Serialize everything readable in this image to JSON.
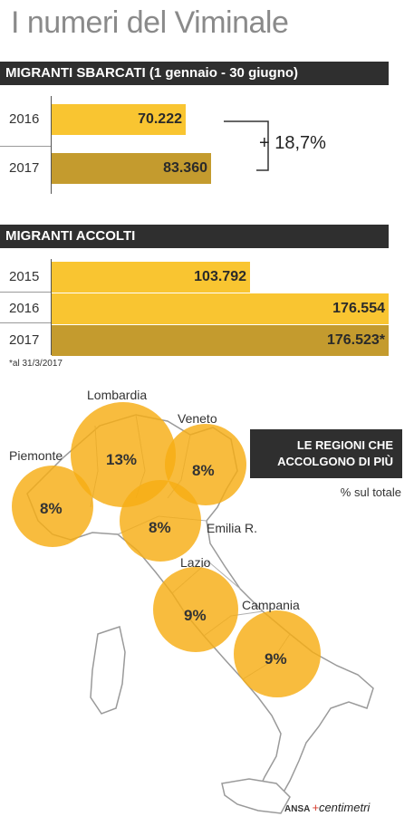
{
  "title": "I numeri del Viminale",
  "section1": {
    "header": "MIGRANTI SBARCATI (1 gennaio - 30 giugno)",
    "delta": "+ 18,7%"
  },
  "section2": {
    "header": "MIGRANTI ACCOLTI",
    "note": "*al 31/3/2017"
  },
  "map": {
    "legend_title_line1": "LE REGIONI CHE",
    "legend_title_line2": "ACCOLGONO DI PIÙ",
    "legend_subtitle": "% sul totale",
    "regions": [
      {
        "name": "Lombardia",
        "pct": "13%",
        "value": 13
      },
      {
        "name": "Veneto",
        "pct": "8%",
        "value": 8
      },
      {
        "name": "Piemonte",
        "pct": "8%",
        "value": 8
      },
      {
        "name": "Emilia R.",
        "pct": "8%",
        "value": 8
      },
      {
        "name": "Lazio",
        "pct": "9%",
        "value": 9
      },
      {
        "name": "Campania",
        "pct": "9%",
        "value": 9
      }
    ]
  },
  "credit": {
    "agency": "ANSA",
    "brand_prefix": "+",
    "brand": "centimetri"
  },
  "colors": {
    "bar_light": "#f9c531",
    "bar_dark": "#c49b2e",
    "circle": "#f8b820",
    "header_bg": "#2f2f2f"
  },
  "chart_data": [
    {
      "type": "bar",
      "title": "MIGRANTI SBARCATI (1 gennaio - 30 giugno)",
      "categories": [
        "2016",
        "2017"
      ],
      "values": [
        70222,
        83360
      ],
      "labels": [
        "70.222",
        "83.360"
      ],
      "annotation": "+ 18,7%"
    },
    {
      "type": "bar",
      "title": "MIGRANTI ACCOLTI",
      "categories": [
        "2015",
        "2016",
        "2017"
      ],
      "values": [
        103792,
        176554,
        176523
      ],
      "labels": [
        "103.792",
        "176.554",
        "176.523*"
      ],
      "note": "*al 31/3/2017"
    }
  ]
}
